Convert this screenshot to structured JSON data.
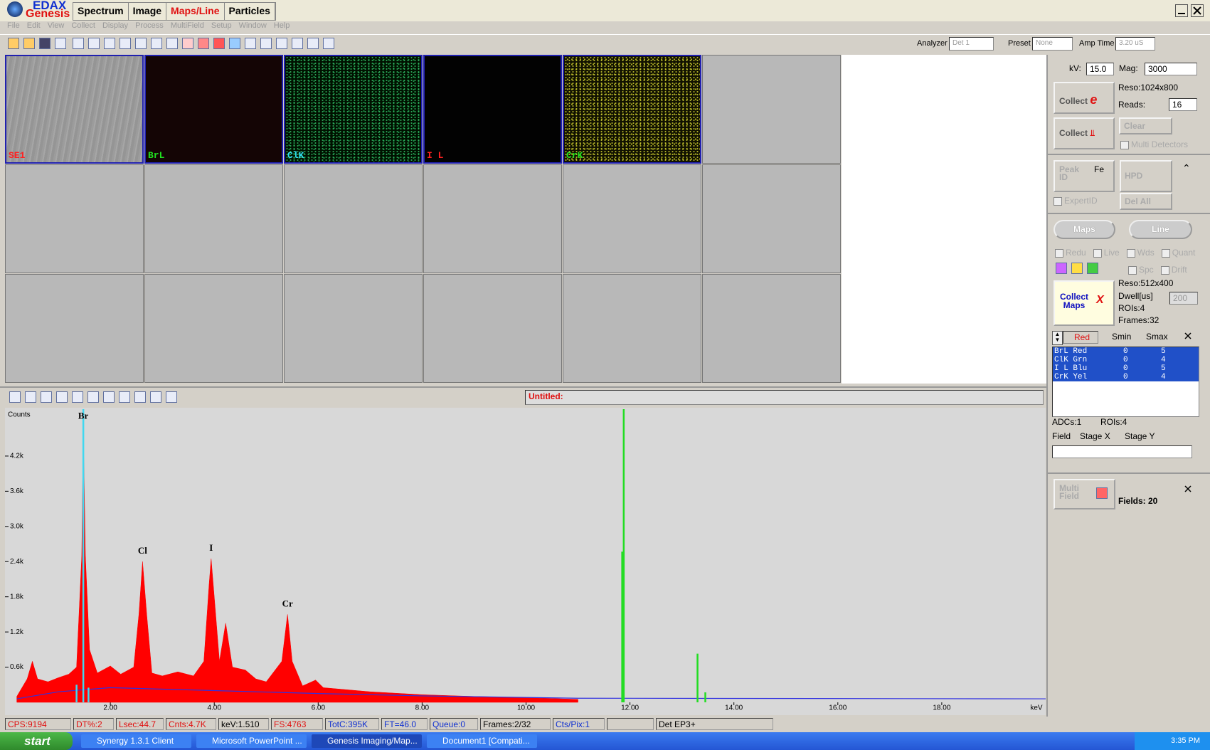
{
  "window": {
    "logo": "EDAX",
    "logo_sub": "Genesis",
    "tabs": [
      "Spectrum",
      "Image",
      "Maps/Line",
      "Particles"
    ],
    "active_tab": 2,
    "menu": [
      "File",
      "Edit",
      "View",
      "Collect",
      "Display",
      "Process",
      "MultiField",
      "Setup",
      "Window",
      "Help"
    ]
  },
  "toolbar": {
    "analyzer_label": "Analyzer",
    "analyzer": "Det 1",
    "preset_label": "Preset",
    "preset": "None",
    "amp_label": "Amp Time",
    "amp": "3.20 uS"
  },
  "maps": {
    "tiles": [
      "SE1",
      "BrL",
      "ClK",
      "I L",
      "CrK"
    ]
  },
  "spectrum": {
    "title": "Untitled:",
    "y_label": "Counts",
    "x_unit": "keV",
    "xlim": [
      0,
      20
    ],
    "ylim": [
      0,
      5000
    ],
    "xticks": [
      {
        "value": 2,
        "label": "2.00"
      },
      {
        "value": 4,
        "label": "4.00"
      },
      {
        "value": 6,
        "label": "6.00"
      },
      {
        "value": 8,
        "label": "8.00"
      },
      {
        "value": 10,
        "label": "10.00"
      },
      {
        "value": 12,
        "label": "12.00"
      },
      {
        "value": 14,
        "label": "14.00"
      },
      {
        "value": 16,
        "label": "16.00"
      },
      {
        "value": 18,
        "label": "18.00"
      }
    ],
    "yticks": [
      {
        "value": 600,
        "label": "0.6k"
      },
      {
        "value": 1200,
        "label": "1.2k"
      },
      {
        "value": 1800,
        "label": "1.8k"
      },
      {
        "value": 2400,
        "label": "2.4k"
      },
      {
        "value": 3000,
        "label": "3.0k"
      },
      {
        "value": 3600,
        "label": "3.6k"
      },
      {
        "value": 4200,
        "label": "4.2k"
      }
    ],
    "counts": {
      "color": "#ff0000",
      "x": [
        0.2,
        0.4,
        0.5,
        0.6,
        0.8,
        1.0,
        1.2,
        1.35,
        1.45,
        1.48,
        1.52,
        1.6,
        1.75,
        2.0,
        2.2,
        2.45,
        2.55,
        2.62,
        2.7,
        2.8,
        3.0,
        3.3,
        3.6,
        3.8,
        3.9,
        3.94,
        4.0,
        4.1,
        4.22,
        4.35,
        4.6,
        4.8,
        5.0,
        5.3,
        5.41,
        5.5,
        5.7,
        5.95,
        6.1,
        7.0,
        8.0,
        9.0,
        10.0,
        11.0
      ],
      "values": [
        100,
        400,
        700,
        400,
        350,
        420,
        480,
        600,
        2500,
        4700,
        2500,
        900,
        500,
        620,
        480,
        600,
        1500,
        2400,
        1500,
        500,
        450,
        520,
        450,
        700,
        2000,
        2450,
        1800,
        700,
        1350,
        600,
        550,
        400,
        350,
        700,
        1500,
        700,
        280,
        380,
        250,
        180,
        130,
        100,
        80,
        50
      ]
    },
    "background": {
      "color": "#3030e0",
      "x": [
        0.2,
        1.0,
        2.0,
        4.0,
        6.0,
        8.0,
        11.0,
        20.0
      ],
      "values": [
        60,
        180,
        250,
        200,
        150,
        110,
        70,
        60
      ]
    },
    "markers": {
      "color": "#22dd22",
      "x": [
        11.88,
        11.85,
        13.3,
        13.45
      ],
      "values": [
        5000,
        2570,
        830,
        170
      ]
    },
    "klines": {
      "color": "#40d8f0",
      "x": [
        1.48,
        1.35,
        1.58
      ],
      "values": [
        5000,
        300,
        250
      ]
    },
    "peaks": {
      "names": [
        "Br",
        "Cl",
        "I",
        "Cr"
      ],
      "x": [
        1.48,
        2.62,
        3.94,
        5.41
      ],
      "values": [
        4700,
        2400,
        2450,
        1500
      ]
    }
  },
  "panel": {
    "kv_label": "kV:",
    "kv": "15.0",
    "mag_label": "Mag:",
    "mag": "3000",
    "reso": "Reso:1024x800",
    "reads_label": "Reads:",
    "reads": "16",
    "collect": "Collect",
    "collect2": "Collect",
    "clear": "Clear",
    "multi_detectors": "Multi Detectors",
    "peak_id": "Peak ID",
    "fe": "Fe",
    "hpd": "HPD",
    "expert_id": "ExpertID",
    "del_all": "Del All",
    "maps": "Maps",
    "line": "Line",
    "checks": [
      "Redu",
      "Live",
      "Wds",
      "Quant"
    ],
    "checks2": [
      "Spc",
      "Drift"
    ],
    "collect_maps": "Collect Maps",
    "map_reso": "Reso:512x400",
    "dwell_label": "Dwell[us]",
    "dwell": "200",
    "rois": "ROIs:4",
    "frames": "Frames:32",
    "color": "Red",
    "smin": "Smin",
    "smax": "Smax",
    "rois_list": [
      [
        "BrL Red",
        "0",
        "5"
      ],
      [
        "ClK Grn",
        "0",
        "4"
      ],
      [
        "I L Blu",
        "0",
        "5"
      ],
      [
        "CrK Yel",
        "0",
        "4"
      ]
    ],
    "adcs": "ADCs:1",
    "rois2": "ROIs:4",
    "field": "Field",
    "stage_x": "Stage X",
    "stage_y": "Stage Y",
    "multi_field": "Multi Field",
    "fields": "Fields: 20"
  },
  "status": [
    "CPS:9194",
    "DT%:2",
    "Lsec:44.7",
    "Cnts:4.7K",
    "keV:1.510",
    "FS:4763",
    "TotC:395K",
    "FT=46.0",
    "Queue:0",
    "Frames:2/32",
    "Cts/Pix:1",
    "Det EP3+"
  ],
  "taskbar": {
    "start": "start",
    "tasks": [
      "Synergy 1.3.1 Client",
      "Microsoft PowerPoint ...",
      "Genesis Imaging/Map...",
      "Document1 [Compati..."
    ],
    "clock": "3:35 PM"
  }
}
